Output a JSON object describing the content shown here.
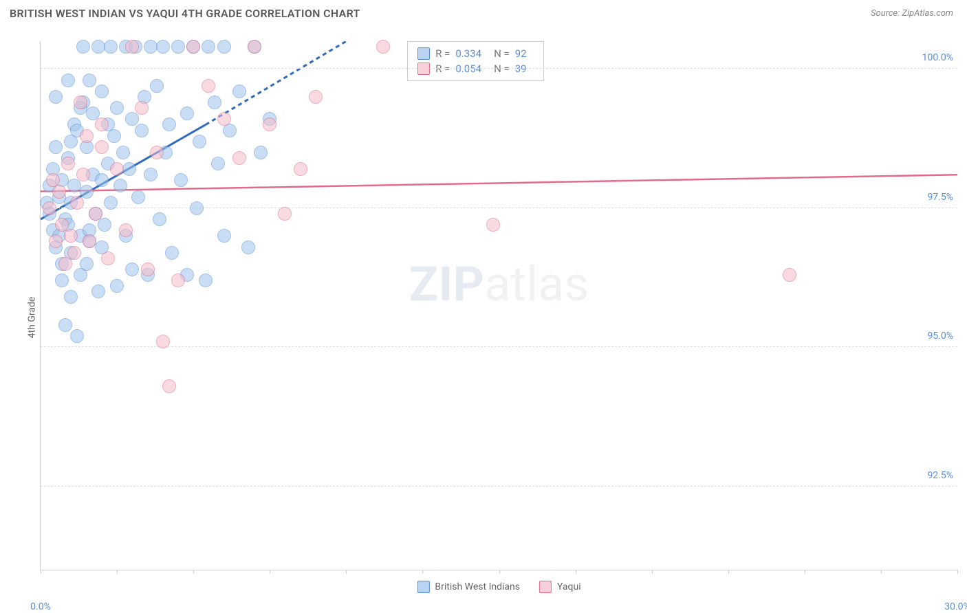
{
  "title": "BRITISH WEST INDIAN VS YAQUI 4TH GRADE CORRELATION CHART",
  "source": "Source: ZipAtlas.com",
  "y_axis_label": "4th Grade",
  "watermark": {
    "bold": "ZIP",
    "rest": "atlas"
  },
  "chart": {
    "type": "scatter",
    "background_color": "#ffffff",
    "grid_color": "#dddddd",
    "axis_color": "#cccccc",
    "tick_label_color": "#5b8dd6",
    "axis_label_color": "#666666",
    "title_color": "#5a5a5a",
    "title_fontsize": 16,
    "label_fontsize": 14,
    "xlim": [
      0.0,
      30.0
    ],
    "ylim": [
      91.0,
      100.5
    ],
    "x_ticks": [
      0.0,
      2.5,
      5.0,
      7.5,
      10.0,
      12.5,
      15.0,
      17.5,
      20.0,
      22.5,
      25.0,
      27.5,
      30.0
    ],
    "x_tick_labels": {
      "0": "0.0%",
      "30": "30.0%"
    },
    "y_ticks": [
      92.5,
      95.0,
      97.5,
      100.0
    ],
    "y_tick_labels": [
      "92.5%",
      "95.0%",
      "97.5%",
      "100.0%"
    ],
    "marker_radius": 10,
    "marker_opacity": 0.55,
    "series": [
      {
        "name": "British West Indians",
        "fill": "#9ec4ec",
        "stroke": "#5b8dd6",
        "R": 0.334,
        "N": 92,
        "trend": {
          "x1": 0.0,
          "y1": 97.3,
          "x2_solid": 5.4,
          "y2_solid": 99.0,
          "x2_dashed": 10.0,
          "y2_dashed": 100.5,
          "color": "#2e6bc0",
          "width": 3,
          "dash": "6,5"
        },
        "points": [
          [
            0.2,
            97.6
          ],
          [
            0.3,
            97.9
          ],
          [
            0.3,
            97.4
          ],
          [
            0.4,
            98.2
          ],
          [
            0.4,
            97.1
          ],
          [
            0.5,
            96.8
          ],
          [
            0.5,
            98.6
          ],
          [
            0.6,
            97.7
          ],
          [
            0.6,
            97.0
          ],
          [
            0.7,
            96.5
          ],
          [
            0.7,
            98.0
          ],
          [
            0.7,
            96.2
          ],
          [
            0.8,
            97.3
          ],
          [
            0.8,
            95.4
          ],
          [
            0.9,
            97.2
          ],
          [
            0.9,
            98.4
          ],
          [
            1.0,
            95.9
          ],
          [
            1.0,
            97.6
          ],
          [
            1.0,
            96.7
          ],
          [
            1.1,
            99.0
          ],
          [
            1.1,
            97.9
          ],
          [
            1.2,
            95.2
          ],
          [
            1.2,
            98.9
          ],
          [
            1.3,
            97.0
          ],
          [
            1.3,
            96.3
          ],
          [
            1.4,
            100.4
          ],
          [
            1.4,
            99.4
          ],
          [
            1.5,
            97.8
          ],
          [
            1.5,
            98.6
          ],
          [
            1.6,
            99.8
          ],
          [
            1.6,
            96.9
          ],
          [
            1.7,
            98.1
          ],
          [
            1.7,
            99.2
          ],
          [
            1.8,
            97.4
          ],
          [
            1.9,
            100.4
          ],
          [
            1.9,
            96.0
          ],
          [
            2.0,
            98.0
          ],
          [
            2.0,
            99.6
          ],
          [
            2.1,
            97.2
          ],
          [
            2.2,
            98.3
          ],
          [
            2.2,
            99.0
          ],
          [
            2.3,
            100.4
          ],
          [
            2.3,
            97.6
          ],
          [
            2.4,
            98.8
          ],
          [
            2.5,
            96.1
          ],
          [
            2.5,
            99.3
          ],
          [
            2.6,
            97.9
          ],
          [
            2.7,
            98.5
          ],
          [
            2.8,
            100.4
          ],
          [
            2.8,
            97.0
          ],
          [
            2.9,
            98.2
          ],
          [
            3.0,
            99.1
          ],
          [
            3.0,
            96.4
          ],
          [
            3.1,
            100.4
          ],
          [
            3.2,
            97.7
          ],
          [
            3.3,
            98.9
          ],
          [
            3.4,
            99.5
          ],
          [
            3.5,
            96.3
          ],
          [
            3.6,
            100.4
          ],
          [
            3.6,
            98.1
          ],
          [
            3.8,
            99.7
          ],
          [
            3.9,
            97.3
          ],
          [
            4.0,
            100.4
          ],
          [
            4.1,
            98.5
          ],
          [
            4.2,
            99.0
          ],
          [
            4.3,
            96.7
          ],
          [
            4.5,
            100.4
          ],
          [
            4.6,
            98.0
          ],
          [
            4.8,
            99.2
          ],
          [
            5.0,
            100.4
          ],
          [
            5.1,
            97.5
          ],
          [
            5.2,
            98.7
          ],
          [
            5.4,
            96.2
          ],
          [
            5.5,
            100.4
          ],
          [
            5.7,
            99.4
          ],
          [
            5.8,
            98.3
          ],
          [
            6.0,
            97.0
          ],
          [
            6.0,
            100.4
          ],
          [
            6.2,
            98.9
          ],
          [
            6.5,
            99.6
          ],
          [
            6.8,
            96.8
          ],
          [
            7.0,
            100.4
          ],
          [
            7.2,
            98.5
          ],
          [
            7.5,
            99.1
          ],
          [
            1.0,
            98.7
          ],
          [
            1.3,
            99.3
          ],
          [
            1.6,
            97.1
          ],
          [
            0.5,
            99.5
          ],
          [
            0.9,
            99.8
          ],
          [
            1.5,
            96.5
          ],
          [
            2.0,
            96.8
          ],
          [
            4.8,
            96.3
          ]
        ]
      },
      {
        "name": "Yaqui",
        "fill": "#f5bcca",
        "stroke": "#e26b8a",
        "R": 0.054,
        "N": 39,
        "trend": {
          "x1": 0.0,
          "y1": 97.8,
          "x2_solid": 30.0,
          "y2_solid": 98.1,
          "color": "#e26b8a",
          "width": 2.5,
          "dash": ""
        },
        "points": [
          [
            0.3,
            97.5
          ],
          [
            0.4,
            98.0
          ],
          [
            0.5,
            96.9
          ],
          [
            0.6,
            97.8
          ],
          [
            0.7,
            97.2
          ],
          [
            0.8,
            96.5
          ],
          [
            0.9,
            98.3
          ],
          [
            1.0,
            97.0
          ],
          [
            1.1,
            96.7
          ],
          [
            1.2,
            97.6
          ],
          [
            1.3,
            99.4
          ],
          [
            1.5,
            98.8
          ],
          [
            1.6,
            96.9
          ],
          [
            1.8,
            97.4
          ],
          [
            2.0,
            99.0
          ],
          [
            2.2,
            96.6
          ],
          [
            2.5,
            98.2
          ],
          [
            2.8,
            97.1
          ],
          [
            3.0,
            100.4
          ],
          [
            3.3,
            99.3
          ],
          [
            3.5,
            96.4
          ],
          [
            3.8,
            98.5
          ],
          [
            4.0,
            95.1
          ],
          [
            4.2,
            94.3
          ],
          [
            4.5,
            96.2
          ],
          [
            5.0,
            100.4
          ],
          [
            5.5,
            99.7
          ],
          [
            6.0,
            99.1
          ],
          [
            6.5,
            98.4
          ],
          [
            7.0,
            100.4
          ],
          [
            7.5,
            99.0
          ],
          [
            8.0,
            97.4
          ],
          [
            8.5,
            98.2
          ],
          [
            9.0,
            99.5
          ],
          [
            11.2,
            100.4
          ],
          [
            14.8,
            97.2
          ],
          [
            24.5,
            96.3
          ],
          [
            2.0,
            98.6
          ],
          [
            1.4,
            98.1
          ]
        ]
      }
    ]
  },
  "legend_top": {
    "rows": [
      {
        "series": 0,
        "r_label": "R =",
        "r_val": "0.334",
        "n_label": "N =",
        "n_val": "92"
      },
      {
        "series": 1,
        "r_label": "R =",
        "r_val": "0.054",
        "n_label": "N =",
        "39": "39",
        "n_val": "39"
      }
    ]
  },
  "legend_bottom": [
    {
      "series": 0,
      "label": "British West Indians"
    },
    {
      "series": 1,
      "label": "Yaqui"
    }
  ]
}
